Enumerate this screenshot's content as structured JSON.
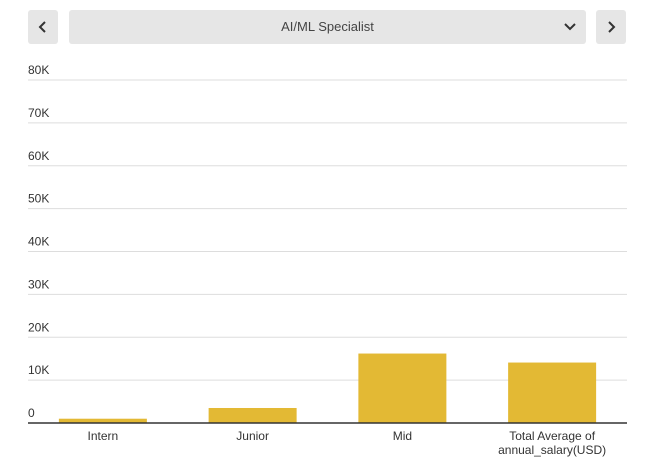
{
  "selector": {
    "selected": "AI/ML Specialist"
  },
  "icons": {
    "prev": "chevron-left-icon",
    "next": "chevron-right-icon",
    "dropdown": "chevron-down-icon"
  },
  "chart_data": {
    "type": "bar",
    "categories": [
      [
        "Intern"
      ],
      [
        "Junior"
      ],
      [
        "Mid"
      ],
      [
        "Total Average of",
        "annual_salary(USD)"
      ]
    ],
    "values": [
      1000,
      3500,
      16200,
      14100
    ],
    "ylim": [
      0,
      80000
    ],
    "yticks": [
      0,
      10000,
      20000,
      30000,
      40000,
      50000,
      60000,
      70000,
      80000
    ],
    "ytick_labels": [
      "0",
      "10K",
      "20K",
      "30K",
      "40K",
      "50K",
      "60K",
      "70K",
      "80K"
    ],
    "grid": true,
    "bar_color": "#e3b934"
  }
}
